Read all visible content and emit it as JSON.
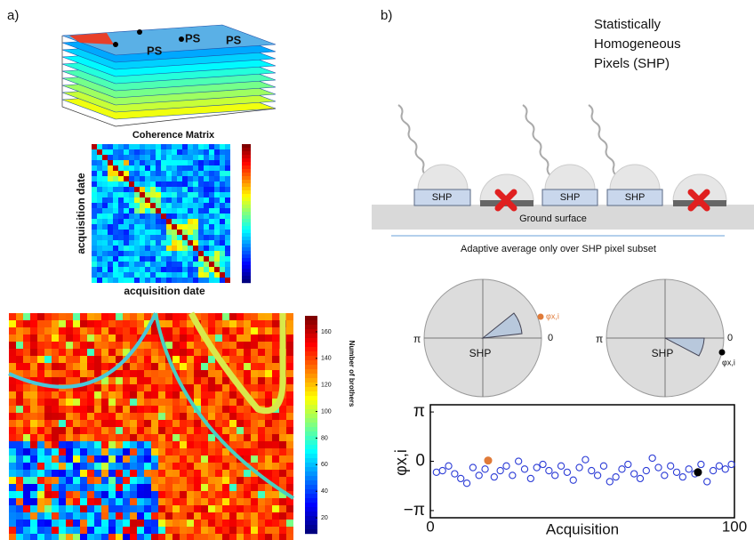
{
  "panel_a": {
    "label": "a)",
    "ps_labels": [
      "PS",
      "PS",
      "PS"
    ],
    "coherence_title": "Coherence Matrix",
    "coherence_ylabel": "acquisition date",
    "coherence_xlabel": "acquisition date",
    "map_colorbar_label": "Number of brothers",
    "map_colorbar": {
      "clim": [
        8,
        172
      ],
      "ticks": [
        20,
        40,
        60,
        80,
        100,
        120,
        140,
        160
      ]
    }
  },
  "panel_b": {
    "label": "b)",
    "title_lines": [
      "Statistically",
      "Homogeneous",
      "Pixels (SHP)"
    ],
    "shp_boxes": [
      "SHP",
      "SHP",
      "SHP"
    ],
    "ground": "Ground surface",
    "caption": "Adaptive average only over SHP pixel subset",
    "polar_left": {
      "pi": "π",
      "zero": "0",
      "wedge": "SHP",
      "phase": "φx,i"
    },
    "polar_right": {
      "pi": "π",
      "zero": "0",
      "wedge": "SHP",
      "phase": "φx,i"
    }
  },
  "chart_data": {
    "type": "scatter",
    "ylabel": "φx,i",
    "xlabel": "Acquisition",
    "xlim": [
      0,
      100
    ],
    "xticks": [
      0,
      100
    ],
    "ylim": [
      -3.6,
      3.6
    ],
    "yticks": [
      {
        "value": 3.1416,
        "label": "π"
      },
      0,
      {
        "value": -3.1416,
        "label": "−π"
      }
    ],
    "series": [
      {
        "color": "#2b3bd6",
        "x": [
          2,
          4,
          6,
          8,
          10,
          12,
          14,
          16,
          18,
          21,
          23,
          25,
          27,
          29,
          31,
          33,
          35,
          37,
          39,
          41,
          43,
          45,
          47,
          49,
          51,
          53,
          55,
          57,
          59,
          61,
          63,
          65,
          67,
          69,
          71,
          73,
          75,
          77,
          79,
          81,
          83,
          85,
          87,
          89,
          91,
          93,
          95,
          97,
          99
        ],
        "values": [
          -0.7,
          -0.6,
          -0.3,
          -0.8,
          -1.1,
          -1.4,
          -0.4,
          -0.9,
          -0.5,
          -1.0,
          -0.6,
          -0.3,
          -0.9,
          0.0,
          -0.5,
          -1.1,
          -0.4,
          -0.2,
          -0.6,
          -0.9,
          -0.3,
          -0.7,
          -1.2,
          -0.4,
          0.1,
          -0.6,
          -0.9,
          -0.3,
          -1.3,
          -1.0,
          -0.5,
          -0.2,
          -0.8,
          -1.1,
          -0.6,
          0.2,
          -0.4,
          -0.9,
          -0.3,
          -0.7,
          -1.0,
          -0.5,
          -0.8,
          -0.2,
          -1.3,
          -0.6,
          -0.3,
          -0.5,
          -0.2
        ]
      },
      {
        "color": "#e07b39",
        "x": [
          19
        ],
        "values": [
          0.05
        ]
      },
      {
        "color": "#000000",
        "x": [
          88
        ],
        "values": [
          -0.7
        ]
      }
    ]
  }
}
